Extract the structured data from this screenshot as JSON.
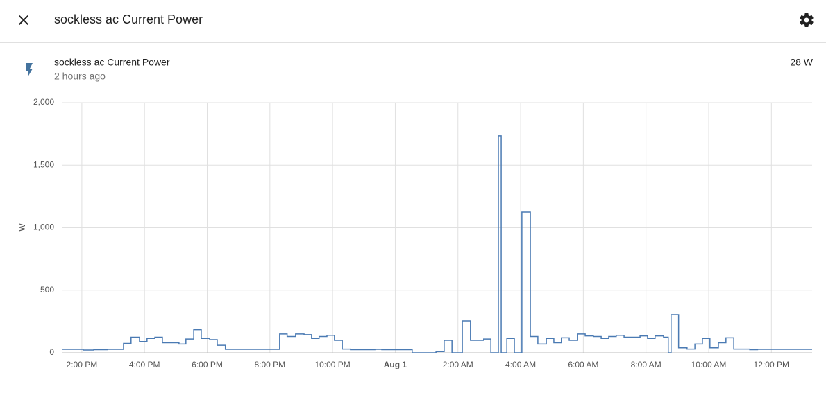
{
  "header": {
    "title": "sockless ac Current Power"
  },
  "entity": {
    "name": "sockless ac Current Power",
    "last_changed": "2 hours ago",
    "state": "28 W"
  },
  "chart_data": {
    "type": "line",
    "step": true,
    "color": "#4a7ab3",
    "grid": true,
    "ylabel": "W",
    "x": [
      13.36,
      14.04,
      14.38,
      14.82,
      15.33,
      15.57,
      15.84,
      16.08,
      16.33,
      16.57,
      17.1,
      17.32,
      17.57,
      17.81,
      18.08,
      18.32,
      18.58,
      20.31,
      20.55,
      20.82,
      21.09,
      21.33,
      21.57,
      21.82,
      22.06,
      22.31,
      22.57,
      23.35,
      23.57,
      24.54,
      25.3,
      25.56,
      25.81,
      26.14,
      26.4,
      26.82,
      27.05,
      27.29,
      27.38,
      27.56,
      27.8,
      28.04,
      28.31,
      28.55,
      28.82,
      29.06,
      29.3,
      29.55,
      29.81,
      30.06,
      30.32,
      30.57,
      30.81,
      31.05,
      31.3,
      31.81,
      32.05,
      32.29,
      32.56,
      32.71,
      32.8,
      33.04,
      33.31,
      33.56,
      33.8,
      34.04,
      34.31,
      34.55,
      34.8,
      35.31,
      35.56,
      37.3
    ],
    "values": [
      28,
      22,
      25,
      28,
      75,
      125,
      90,
      115,
      125,
      80,
      70,
      110,
      185,
      115,
      105,
      60,
      28,
      150,
      130,
      150,
      145,
      115,
      130,
      140,
      100,
      30,
      25,
      28,
      25,
      0,
      10,
      100,
      0,
      255,
      100,
      110,
      0,
      1735,
      0,
      115,
      0,
      1125,
      130,
      70,
      115,
      80,
      120,
      100,
      150,
      135,
      130,
      115,
      130,
      140,
      125,
      135,
      115,
      135,
      125,
      0,
      305,
      40,
      30,
      70,
      115,
      40,
      80,
      120,
      30,
      25,
      28,
      28
    ],
    "xlim": [
      13.36,
      37.3
    ],
    "xticks": [
      {
        "value": 14,
        "label": "2:00 PM"
      },
      {
        "value": 16,
        "label": "4:00 PM"
      },
      {
        "value": 18,
        "label": "6:00 PM"
      },
      {
        "value": 20,
        "label": "8:00 PM"
      },
      {
        "value": 22,
        "label": "10:00 PM"
      },
      {
        "value": 24,
        "label": "Aug 1"
      },
      {
        "value": 26,
        "label": "2:00 AM"
      },
      {
        "value": 28,
        "label": "4:00 AM"
      },
      {
        "value": 30,
        "label": "6:00 AM"
      },
      {
        "value": 32,
        "label": "8:00 AM"
      },
      {
        "value": 34,
        "label": "10:00 AM"
      },
      {
        "value": 36,
        "label": "12:00 PM"
      }
    ],
    "ylim": [
      0,
      2000
    ],
    "yticks": [
      0,
      500,
      {
        "value": 1000,
        "label": "1,000"
      },
      {
        "value": 1500,
        "label": "1,500"
      },
      {
        "value": 2000,
        "label": "2,000"
      }
    ]
  }
}
